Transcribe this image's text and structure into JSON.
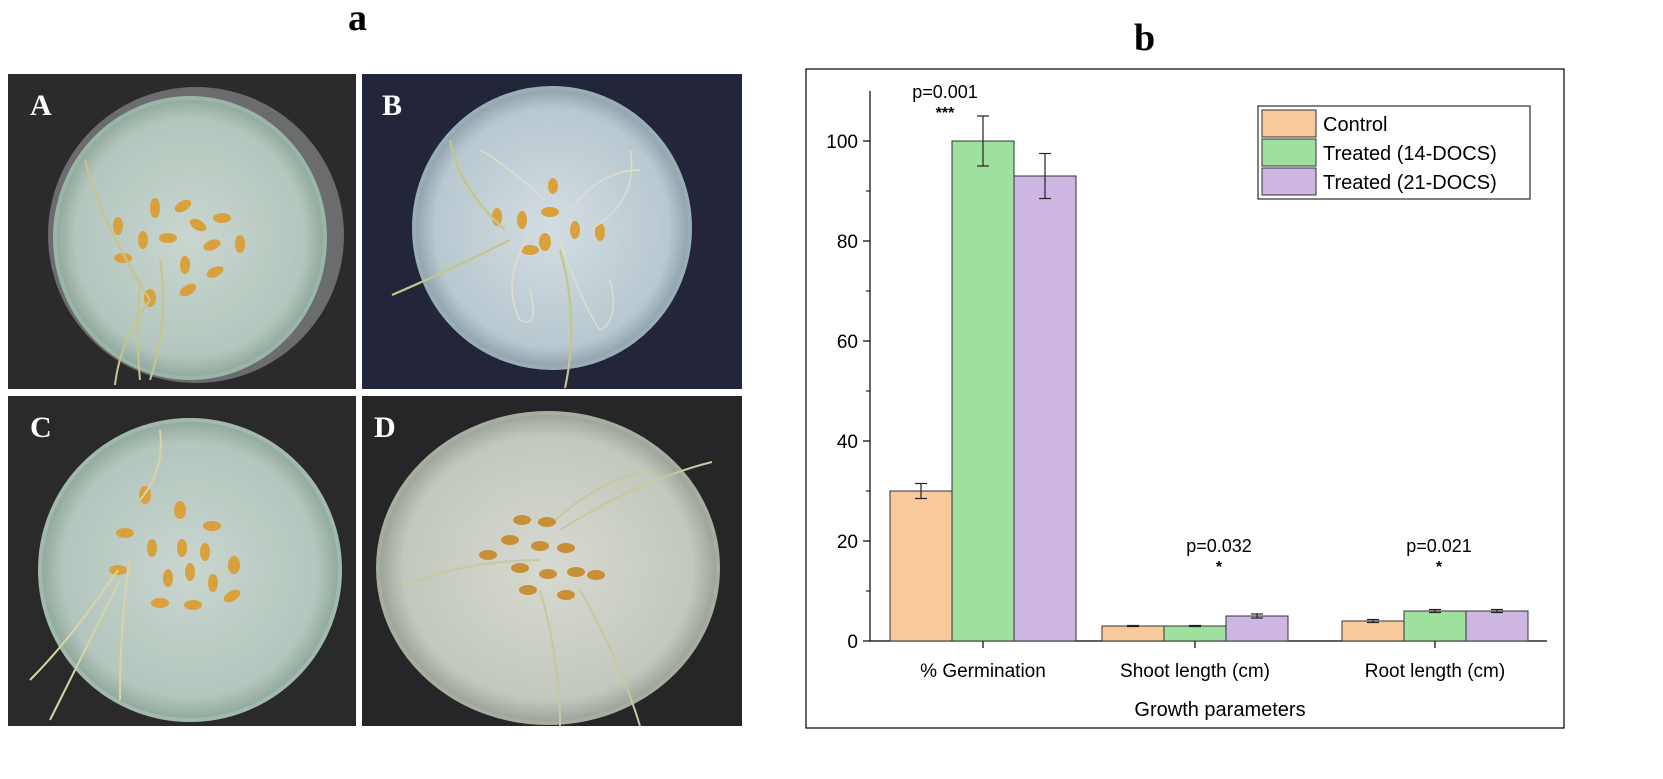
{
  "panel_a": {
    "letter": "a",
    "plates": [
      {
        "label": "A"
      },
      {
        "label": "B"
      },
      {
        "label": "C"
      },
      {
        "label": "D"
      }
    ]
  },
  "panel_b": {
    "letter": "b"
  },
  "chart_data": {
    "type": "bar",
    "title": "",
    "xlabel": "Growth parameters",
    "ylabel": "",
    "ylim": [
      0,
      110
    ],
    "yticks": [
      0,
      20,
      40,
      60,
      80,
      100
    ],
    "categories": [
      "% Germination",
      "Shoot length (cm)",
      "Root length (cm)"
    ],
    "series": [
      {
        "name": "Control",
        "color": "#f8c99a",
        "values": [
          30,
          3,
          4
        ],
        "errors": [
          1.5,
          0.1,
          0.3
        ]
      },
      {
        "name": "Treated (14-DOCS)",
        "color": "#9ee09e",
        "values": [
          100,
          3,
          6
        ],
        "errors": [
          5,
          0.1,
          0.3
        ]
      },
      {
        "name": "Treated (21-DOCS)",
        "color": "#cdb6e2",
        "values": [
          93,
          5,
          6
        ],
        "errors": [
          4.5,
          0.4,
          0.3
        ]
      }
    ],
    "annotations": [
      {
        "category": "% Germination",
        "p": "p=0.001",
        "stars": "***"
      },
      {
        "category": "Shoot length (cm)",
        "p": "p=0.032",
        "stars": "*"
      },
      {
        "category": "Root length (cm)",
        "p": "p=0.021",
        "stars": "*"
      }
    ],
    "legend": "top-right",
    "grid": false
  }
}
